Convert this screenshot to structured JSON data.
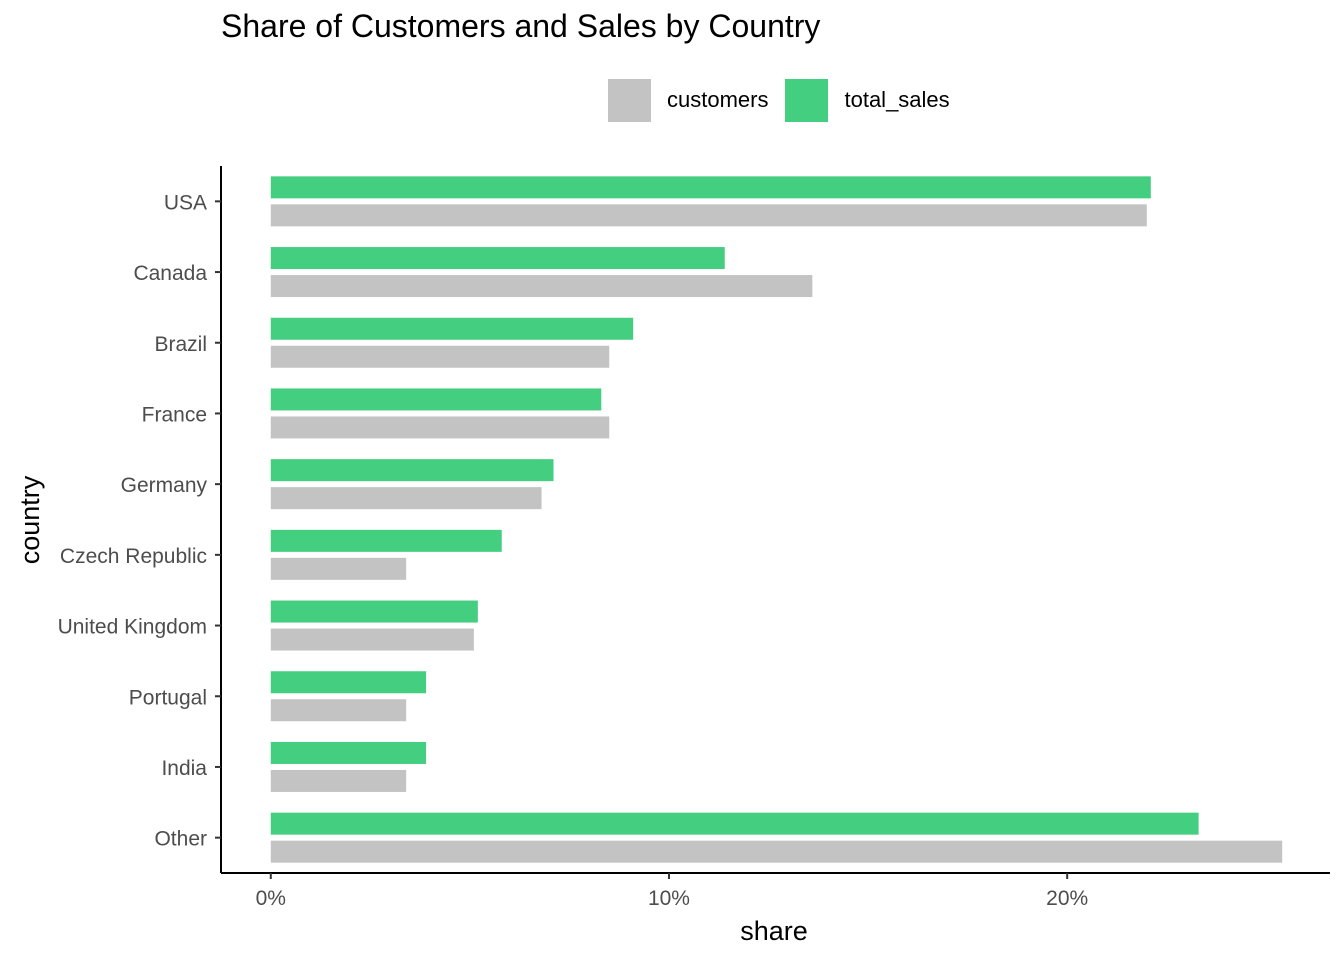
{
  "chart_data": {
    "type": "bar",
    "orientation": "horizontal",
    "title": "Share of Customers and Sales by Country",
    "xlabel": "share",
    "ylabel": "country",
    "categories": [
      "USA",
      "Canada",
      "Brazil",
      "France",
      "Germany",
      "Czech Republic",
      "United Kingdom",
      "Portugal",
      "India",
      "Other"
    ],
    "series": [
      {
        "name": "total_sales",
        "color": "#44CE7F",
        "values": [
          22.1,
          11.4,
          9.1,
          8.3,
          7.1,
          5.8,
          5.2,
          3.9,
          3.9,
          23.3
        ]
      },
      {
        "name": "customers",
        "color": "#C3C3C3",
        "values": [
          22.0,
          13.6,
          8.5,
          8.5,
          6.8,
          3.4,
          5.1,
          3.4,
          3.4,
          25.4
        ]
      }
    ],
    "xlim": [
      -1.25,
      26.6
    ],
    "xticks": [
      0,
      10,
      20
    ],
    "xtick_labels": [
      "0%",
      "10%",
      "20%"
    ],
    "grid": false,
    "legend": {
      "position": "top",
      "items": [
        {
          "label": "customers",
          "color": "#C3C3C3"
        },
        {
          "label": "total_sales",
          "color": "#44CE7F"
        }
      ]
    }
  }
}
